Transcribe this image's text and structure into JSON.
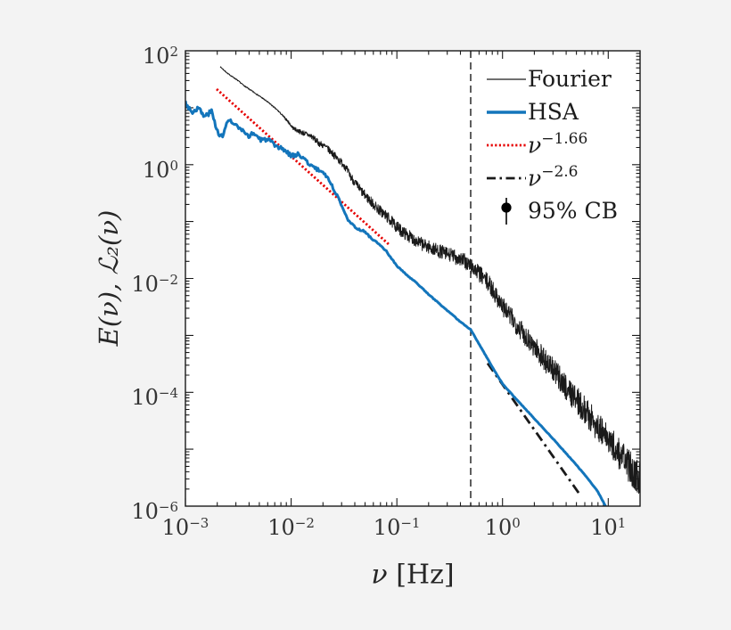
{
  "figure": {
    "background_color": "#f3f3f3",
    "plot_background_color": "#ffffff",
    "axis_color": "#1a1a1a",
    "text_color": "#333333"
  },
  "legend": {
    "position": "upper-right-inside, no box",
    "entries": [
      {
        "label": "Fourier",
        "sample": "thin-solid-line",
        "color": "#1a1a1a"
      },
      {
        "label": "HSA",
        "sample": "thick-solid-line",
        "color": "#1375bb"
      },
      {
        "label_base": "ν",
        "label_exp": "−1.66",
        "sample": "dotted-line",
        "color": "#e60000"
      },
      {
        "label_base": "ν",
        "label_exp": "−2.6",
        "sample": "dashdot-line",
        "color": "#1a1a1a"
      },
      {
        "label": "95% CB",
        "sample": "point-with-errorbar",
        "color": "#000000"
      }
    ]
  },
  "chart_data": {
    "type": "line",
    "title": "",
    "xlabel": "ν [Hz]",
    "xlabel_symbol": "ν",
    "xlabel_unit": " [Hz]",
    "ylabel": "E(ν), ℒ₂(ν)",
    "xscale": "log",
    "yscale": "log",
    "xlim": [
      0.001,
      20
    ],
    "ylim": [
      1e-06,
      100
    ],
    "grid": false,
    "tick_base": "10",
    "x_tick_exponents": [
      -3,
      -2,
      -1,
      0,
      1
    ],
    "y_tick_exponents": [
      2,
      0,
      -2,
      -4,
      -6
    ],
    "vline": {
      "x": 0.5,
      "style": "dashed",
      "color": "#1a1a1a"
    },
    "series": [
      {
        "name": "Fourier",
        "style": "solid-noisy",
        "color": "#1a1a1a",
        "line_width": 1,
        "samples": 1600,
        "seed": 7,
        "log10_keypoints": [
          [
            -2.671,
            1.72
          ],
          [
            -2.6,
            1.6
          ],
          [
            -2.52,
            1.5
          ],
          [
            -2.44,
            1.38
          ],
          [
            -2.36,
            1.28
          ],
          [
            -2.28,
            1.18
          ],
          [
            -2.2,
            1.07
          ],
          [
            -2.12,
            0.94
          ],
          [
            -2.04,
            0.78
          ],
          [
            -1.98,
            0.64
          ],
          [
            -1.92,
            0.58
          ],
          [
            -1.86,
            0.54
          ],
          [
            -1.8,
            0.49
          ],
          [
            -1.74,
            0.38
          ],
          [
            -1.68,
            0.32
          ],
          [
            -1.62,
            0.22
          ],
          [
            -1.56,
            0.1
          ],
          [
            -1.5,
            0.0
          ],
          [
            -1.44,
            -0.2
          ],
          [
            -1.38,
            -0.36
          ],
          [
            -1.32,
            -0.5
          ],
          [
            -1.26,
            -0.62
          ],
          [
            -1.2,
            -0.74
          ],
          [
            -1.14,
            -0.84
          ],
          [
            -1.08,
            -0.94
          ],
          [
            -1.02,
            -1.06
          ],
          [
            -0.96,
            -1.16
          ],
          [
            -0.9,
            -1.24
          ],
          [
            -0.84,
            -1.31
          ],
          [
            -0.78,
            -1.38
          ],
          [
            -0.72,
            -1.43
          ],
          [
            -0.66,
            -1.48
          ],
          [
            -0.6,
            -1.52
          ],
          [
            -0.54,
            -1.56
          ],
          [
            -0.48,
            -1.6
          ],
          [
            -0.42,
            -1.64
          ],
          [
            -0.36,
            -1.7
          ],
          [
            -0.3,
            -1.78
          ],
          [
            -0.24,
            -1.88
          ],
          [
            -0.18,
            -1.99
          ],
          [
            -0.12,
            -2.12
          ],
          [
            -0.06,
            -2.3
          ],
          [
            0.0,
            -2.49
          ],
          [
            0.1,
            -2.73
          ],
          [
            0.2,
            -2.96
          ],
          [
            0.3,
            -3.19
          ],
          [
            0.4,
            -3.43
          ],
          [
            0.5,
            -3.66
          ],
          [
            0.6,
            -3.9
          ],
          [
            0.7,
            -4.13
          ],
          [
            0.8,
            -4.37
          ],
          [
            0.9,
            -4.6
          ],
          [
            1.0,
            -4.84
          ],
          [
            1.1,
            -5.07
          ],
          [
            1.2,
            -5.31
          ],
          [
            1.31,
            -5.57
          ]
        ],
        "noise_log10": [
          [
            -2.671,
            0.008
          ],
          [
            -2.1,
            0.012
          ],
          [
            -1.9,
            0.045
          ],
          [
            -1.5,
            0.07
          ],
          [
            -1.1,
            0.1
          ],
          [
            -0.6,
            0.12
          ],
          [
            -0.2,
            0.15
          ],
          [
            0.2,
            0.19
          ],
          [
            0.7,
            0.24
          ],
          [
            1.31,
            0.3
          ]
        ]
      },
      {
        "name": "HSA",
        "style": "solid",
        "color": "#1375bb",
        "line_width": 3,
        "samples": 420,
        "seed": 3,
        "log10_keypoints": [
          [
            -3.0,
            1.1
          ],
          [
            -2.94,
            0.92
          ],
          [
            -2.88,
            1.0
          ],
          [
            -2.82,
            0.84
          ],
          [
            -2.755,
            0.94
          ],
          [
            -2.7,
            0.6
          ],
          [
            -2.646,
            0.47
          ],
          [
            -2.6,
            0.8
          ],
          [
            -2.536,
            0.7
          ],
          [
            -2.48,
            0.62
          ],
          [
            -2.42,
            0.5
          ],
          [
            -2.35,
            0.55
          ],
          [
            -2.28,
            0.42
          ],
          [
            -2.22,
            0.46
          ],
          [
            -2.15,
            0.3
          ],
          [
            -2.08,
            0.28
          ],
          [
            -2.0,
            0.16
          ],
          [
            -1.92,
            0.18
          ],
          [
            -1.84,
            0.03
          ],
          [
            -1.76,
            -0.08
          ],
          [
            -1.7,
            -0.13
          ],
          [
            -1.66,
            -0.21
          ],
          [
            -1.6,
            -0.42
          ],
          [
            -1.55,
            -0.6
          ],
          [
            -1.5,
            -0.8
          ],
          [
            -1.46,
            -0.97
          ],
          [
            -1.42,
            -1.06
          ],
          [
            -1.38,
            -1.12
          ],
          [
            -1.3,
            -1.18
          ],
          [
            -1.25,
            -1.28
          ],
          [
            -1.2,
            -1.35
          ],
          [
            -1.1,
            -1.52
          ],
          [
            -1.0,
            -1.78
          ],
          [
            -0.9,
            -1.95
          ],
          [
            -0.8,
            -2.1
          ],
          [
            -0.7,
            -2.28
          ],
          [
            -0.6,
            -2.44
          ],
          [
            -0.5,
            -2.6
          ],
          [
            -0.4,
            -2.76
          ],
          [
            -0.3,
            -2.9
          ],
          [
            -0.2,
            -3.22
          ],
          [
            -0.1,
            -3.55
          ],
          [
            0.0,
            -3.85
          ],
          [
            0.1,
            -4.06
          ],
          [
            0.2,
            -4.26
          ],
          [
            0.3,
            -4.46
          ],
          [
            0.4,
            -4.66
          ],
          [
            0.5,
            -4.86
          ],
          [
            0.6,
            -5.07
          ],
          [
            0.7,
            -5.28
          ],
          [
            0.8,
            -5.5
          ],
          [
            0.9,
            -5.74
          ],
          [
            0.98,
            -6.02
          ]
        ],
        "noise_log10": [
          [
            -3.0,
            0.045
          ],
          [
            -2.2,
            0.045
          ],
          [
            -1.6,
            0.025
          ],
          [
            -1.2,
            0.012
          ],
          [
            -0.6,
            0.006
          ],
          [
            0.98,
            0.004
          ]
        ]
      },
      {
        "name": "ν^−1.66 reference",
        "style": "dotted",
        "color": "#e60000",
        "line_width": 2.8,
        "slope": -1.66,
        "log10_points": [
          [
            -2.705,
            1.327
          ],
          [
            -1.069,
            -1.413
          ]
        ]
      },
      {
        "name": "ν^−2.6 reference",
        "style": "dashdot",
        "color": "#1a1a1a",
        "line_width": 2.8,
        "slope": -2.6,
        "log10_points": [
          [
            -0.141,
            -3.49
          ],
          [
            0.744,
            -5.83
          ]
        ]
      }
    ]
  }
}
